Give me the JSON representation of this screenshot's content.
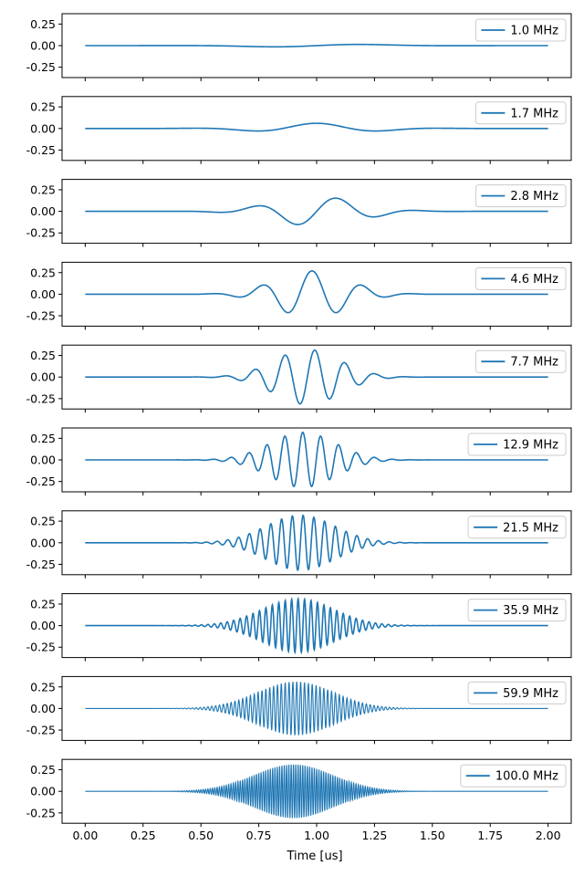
{
  "chart_data": {
    "type": "line",
    "xlabel": "Time [us]",
    "xlim": [
      -0.1,
      2.1
    ],
    "ylim": [
      -0.37,
      0.37
    ],
    "xticks": [
      "0.00",
      "0.25",
      "0.50",
      "0.75",
      "1.00",
      "1.25",
      "1.50",
      "1.75",
      "2.00"
    ],
    "yticks": [
      "0.25",
      "0.00",
      "-0.25"
    ],
    "line_color": "#1f77b4",
    "legend_position": "top-right",
    "subplots": [
      {
        "name": "1.0 MHz",
        "freq_mhz": 1.0,
        "amplitude": 0.02,
        "center_us": 1.0,
        "width_us": 0.35
      },
      {
        "name": "1.7 MHz",
        "freq_mhz": 1.7,
        "amplitude": 0.06,
        "center_us": 1.0,
        "width_us": 0.32
      },
      {
        "name": "2.8 MHz",
        "freq_mhz": 2.8,
        "amplitude": 0.17,
        "center_us": 1.0,
        "width_us": 0.26
      },
      {
        "name": "4.6 MHz",
        "freq_mhz": 4.6,
        "amplitude": 0.27,
        "center_us": 0.98,
        "width_us": 0.22
      },
      {
        "name": "7.7 MHz",
        "freq_mhz": 7.7,
        "amplitude": 0.32,
        "center_us": 0.96,
        "width_us": 0.2
      },
      {
        "name": "12.9 MHz",
        "freq_mhz": 12.9,
        "amplitude": 0.32,
        "center_us": 0.94,
        "width_us": 0.2
      },
      {
        "name": "21.5 MHz",
        "freq_mhz": 21.5,
        "amplitude": 0.32,
        "center_us": 0.93,
        "width_us": 0.21
      },
      {
        "name": "35.9 MHz",
        "freq_mhz": 35.9,
        "amplitude": 0.31,
        "center_us": 0.92,
        "width_us": 0.22
      },
      {
        "name": "59.9 MHz",
        "freq_mhz": 59.9,
        "amplitude": 0.31,
        "center_us": 0.91,
        "width_us": 0.23
      },
      {
        "name": "100.0 MHz",
        "freq_mhz": 100.0,
        "amplitude": 0.31,
        "center_us": 0.9,
        "width_us": 0.24
      }
    ]
  }
}
